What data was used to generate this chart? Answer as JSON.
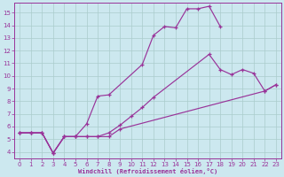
{
  "bg_color": "#cce8ef",
  "line_color": "#993399",
  "grid_color": "#aacccc",
  "xlim": [
    -0.5,
    23.5
  ],
  "ylim": [
    3.5,
    15.8
  ],
  "xticks": [
    0,
    1,
    2,
    3,
    4,
    5,
    6,
    7,
    8,
    9,
    10,
    11,
    12,
    13,
    14,
    15,
    16,
    17,
    18,
    19,
    20,
    21,
    22,
    23
  ],
  "yticks": [
    4,
    5,
    6,
    7,
    8,
    9,
    10,
    11,
    12,
    13,
    14,
    15
  ],
  "xlabel": "Windchill (Refroidissement éolien,°C)",
  "line1_x": [
    0,
    1,
    2,
    3,
    4,
    5,
    6,
    7,
    8,
    11,
    12,
    13,
    14,
    15,
    16,
    17,
    18
  ],
  "line1_y": [
    5.5,
    5.5,
    5.5,
    3.9,
    5.2,
    5.2,
    6.2,
    8.4,
    8.5,
    10.9,
    13.2,
    13.9,
    13.8,
    15.3,
    15.3,
    15.5,
    13.9
  ],
  "line2_x": [
    0,
    1,
    2,
    3,
    4,
    5,
    6,
    7,
    8,
    9,
    10,
    11,
    12,
    17,
    18,
    19,
    20,
    21,
    22,
    23
  ],
  "line2_y": [
    5.5,
    5.5,
    5.5,
    3.9,
    5.2,
    5.2,
    5.2,
    5.2,
    5.5,
    6.1,
    6.8,
    7.5,
    8.3,
    11.7,
    10.5,
    10.1,
    10.5,
    10.2,
    8.8,
    9.3
  ],
  "line3_x": [
    0,
    1,
    2,
    3,
    4,
    5,
    6,
    7,
    8,
    9,
    22,
    23
  ],
  "line3_y": [
    5.5,
    5.5,
    5.5,
    3.9,
    5.2,
    5.2,
    5.2,
    5.2,
    5.2,
    5.8,
    8.8,
    9.3
  ]
}
